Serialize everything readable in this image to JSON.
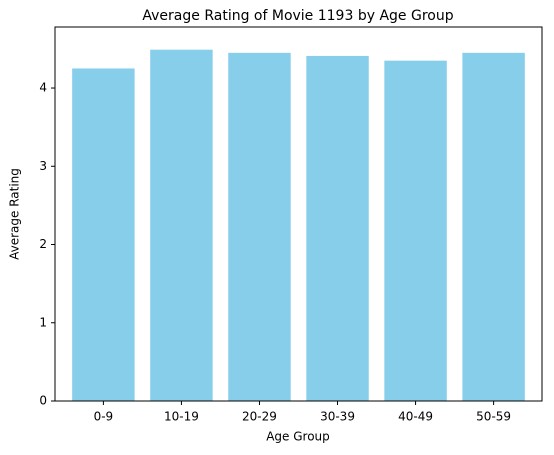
{
  "chart_data": {
    "type": "bar",
    "title": "Average Rating of Movie 1193 by Age Group",
    "x_label": "Age Group",
    "y_label": "Average Rating",
    "categories": [
      "0-9",
      "10-19",
      "20-29",
      "30-39",
      "40-49",
      "50-59"
    ],
    "values": [
      4.25,
      4.49,
      4.45,
      4.41,
      4.35,
      4.45
    ],
    "color": "#87ceeb",
    "ylim": [
      0,
      4.78
    ],
    "yticks": [
      0,
      1,
      2,
      3,
      4
    ],
    "grid": false
  }
}
